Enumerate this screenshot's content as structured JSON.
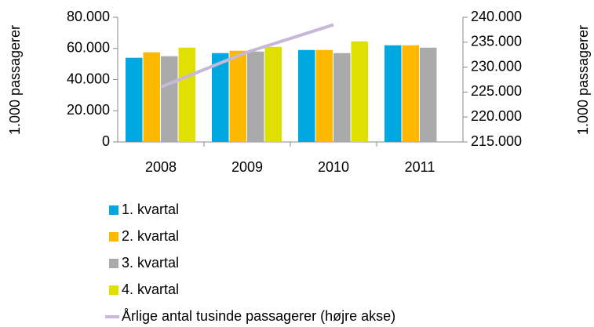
{
  "chart_data": {
    "type": "bar",
    "y_label": "1.000 passagerer",
    "y2_label": "1.000 passagerer",
    "categories": [
      "2008",
      "2009",
      "2010",
      "2011"
    ],
    "series": [
      {
        "name": "1. kvartal",
        "color": "#00a8e1",
        "values": [
          54000,
          57000,
          59000,
          62000
        ]
      },
      {
        "name": "2. kvartal",
        "color": "#ffb800",
        "values": [
          57500,
          58500,
          59000,
          62000
        ]
      },
      {
        "name": "3. kvartal",
        "color": "#aaaaaa",
        "values": [
          55000,
          58000,
          57000,
          60500
        ]
      },
      {
        "name": "4. kvartal",
        "color": "#e0e000",
        "values": [
          60500,
          61000,
          64500,
          null
        ]
      },
      {
        "name": "Årlige antal tusinde passagerer (højre akse)",
        "color": "#c8b8d8",
        "type": "line",
        "axis": "y2",
        "values": [
          226000,
          233000,
          238500,
          null
        ]
      }
    ],
    "ylim": [
      0,
      80000
    ],
    "yticks": [
      0,
      {
        "value": 20000,
        "label": "20.000"
      },
      {
        "value": 40000,
        "label": "40.000"
      },
      {
        "value": 60000,
        "label": "60.000"
      },
      {
        "value": 80000,
        "label": "80.000"
      }
    ],
    "y2lim": [
      215000,
      240000
    ],
    "y2ticks": [
      {
        "value": 215000,
        "label": "215.000"
      },
      {
        "value": 220000,
        "label": "220.000"
      },
      {
        "value": 225000,
        "label": "225.000"
      },
      {
        "value": 230000,
        "label": "230.000"
      },
      {
        "value": 235000,
        "label": "235.000"
      },
      {
        "value": 240000,
        "label": "240.000"
      }
    ],
    "grid": false,
    "legend": "bottom"
  }
}
